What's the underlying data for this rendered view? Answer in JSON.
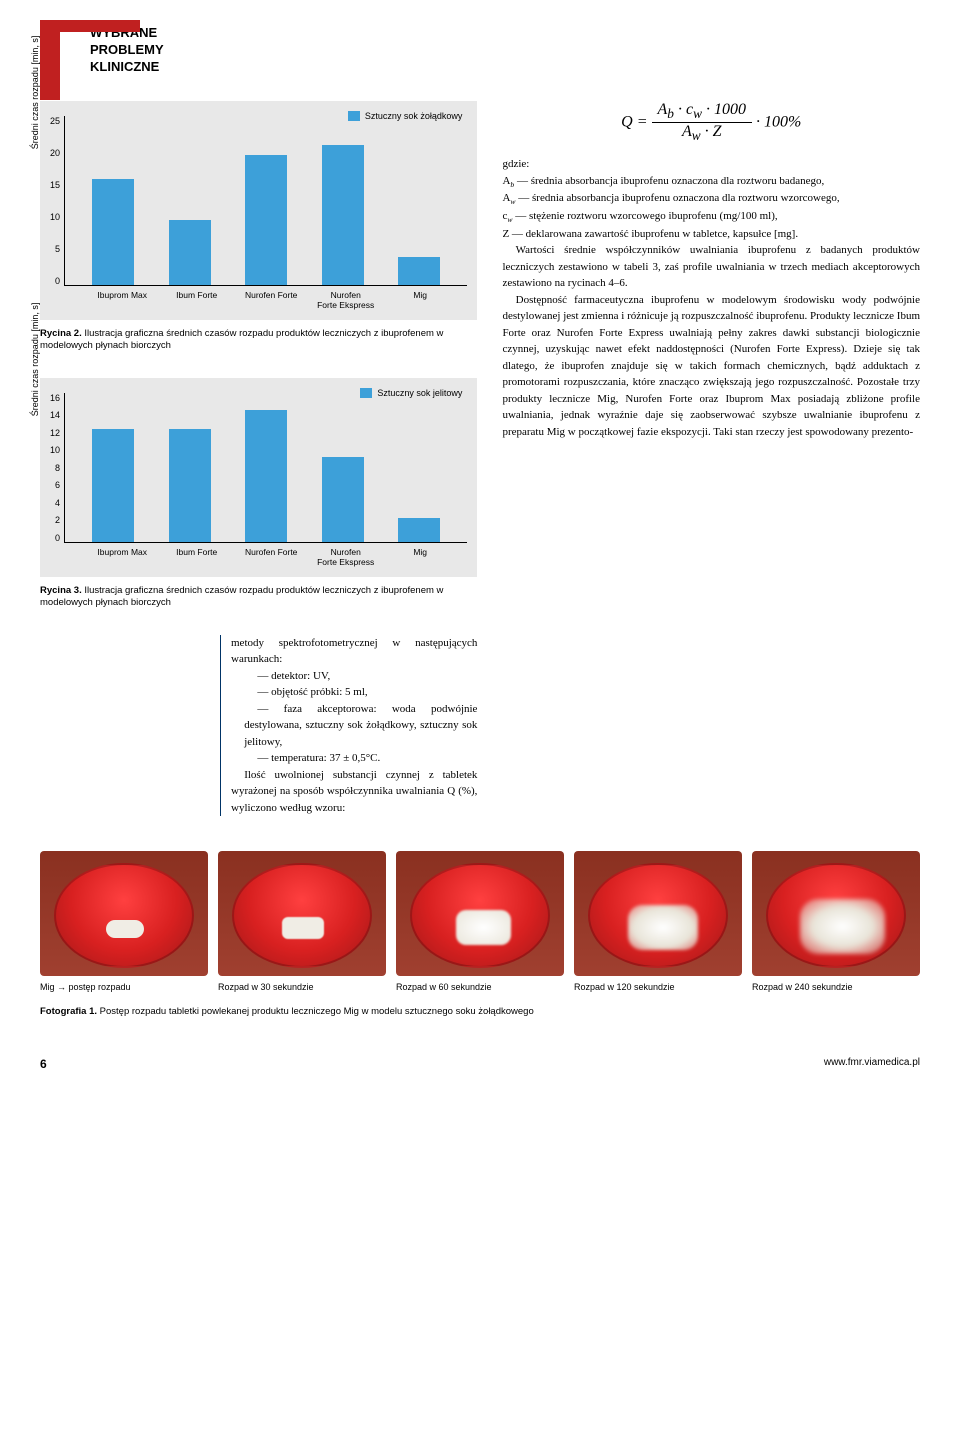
{
  "header": {
    "line1": "WYBRANE",
    "line2": "PROBLEMY",
    "line3": "KLINICZNE"
  },
  "chart2": {
    "type": "bar",
    "legend": "Sztuczny sok żołądkowy",
    "ylabel": "Średni czas rozpadu [min, s]",
    "ylim": [
      0,
      25
    ],
    "ytick_step": 5,
    "categories": [
      "Ibuprom Max",
      "Ibum Forte",
      "Nurofen Forte",
      "Nurofen\nForte Ekspress",
      "Mig"
    ],
    "values": [
      15.5,
      9.5,
      19,
      20.5,
      4
    ],
    "bar_color": "#3da0d9",
    "background_color": "#e8e8e8",
    "caption_label": "Rycina 2.",
    "caption": "Ilustracja graficzna średnich czasów rozpadu produktów leczniczych z ibuprofenem w modelowych płynach biorczych"
  },
  "chart3": {
    "type": "bar",
    "legend": "Sztuczny sok jelitowy",
    "ylabel": "Średni czas rozpadu [min, s]",
    "ylim": [
      0,
      16
    ],
    "ytick_step": 2,
    "categories": [
      "Ibuprom Max",
      "Ibum Forte",
      "Nurofen Forte",
      "Nurofen\nForte Ekspress",
      "Mig"
    ],
    "values": [
      12,
      12,
      14,
      9,
      2.5
    ],
    "bar_color": "#3da0d9",
    "background_color": "#e8e8e8",
    "caption_label": "Rycina 3.",
    "caption": "Ilustracja graficzna średnich czasów rozpadu produktów leczniczych z ibuprofenem w modelowych płynach biorczych"
  },
  "left_body": {
    "intro": "metody spektrofotometrycznej w następujących warunkach:",
    "b1": "— detektor: UV,",
    "b2": "— objętość próbki: 5 ml,",
    "b3": "— faza akceptorowa: woda podwójnie destylowana, sztuczny sok żołądkowy, sztuczny sok jelitowy,",
    "b4": "— temperatura: 37 ± 0,5°C.",
    "p2": "Ilość uwolnionej substancji czynnej z tabletek wyrażonej na sposób współczynnika uwalniania Q (%), wyliczono według wzoru:"
  },
  "formula": {
    "lhs": "Q",
    "num": "A_b · c_w · 1000",
    "den": "A_w · Z",
    "rhs": "· 100%"
  },
  "right_body": {
    "g": "gdzie:",
    "d1": "A_b — średnia absorbancja ibuprofenu oznaczona dla roztworu badanego,",
    "d2": "A_w — średnia absorbancja ibuprofenu oznaczona dla roztworu wzorcowego,",
    "d3": "c_w — stężenie roztworu wzorcowego ibuprofenu (mg/100 ml),",
    "d4": "Z — deklarowana zawartość ibuprofenu w tabletce, kapsułce [mg].",
    "p1": "Wartości średnie współczynników uwalniania ibuprofenu z badanych produktów leczniczych zestawiono w tabeli 3, zaś profile uwalniania w trzech mediach akceptorowych zestawiono na rycinach 4–6.",
    "p2": "Dostępność farmaceutyczna ibuprofenu w modelowym środowisku wody podwójnie destylowanej jest zmienna i różnicuje ją rozpuszczalność ibuprofenu. Produkty lecznicze Ibum Forte oraz Nurofen Forte Express uwalniają pełny zakres dawki substancji biologicznie czynnej, uzyskując nawet efekt naddostępności (Nurofen Forte Express). Dzieje się tak dlatego, że ibuprofen znajduje się w takich formach chemicznych, bądź adduktach z promotorami rozpuszczania, które znacząco zwiększają jego rozpuszczalność. Pozostałe trzy produkty lecznicze Mig, Nurofen Forte oraz Ibuprom Max posiadają zbliżone profile uwalniania, jednak wyraźnie daje się zaobserwować szybsze uwalnianie ibuprofenu z preparatu Mig w początkowej fazie ekspozycji. Taki stan rzeczy jest spowodowany prezento-"
  },
  "photos": {
    "labels": [
      "Mig → postęp rozpadu",
      "Rozpad w 30 sekundzie",
      "Rozpad w 60 sekundzie",
      "Rozpad w 120 sekundzie",
      "Rozpad w 240 sekundzie"
    ],
    "caption_label": "Fotografia 1.",
    "caption": "Postęp rozpadu tabletki powlekanej produktu leczniczego Mig w modelu sztucznego soku żołądkowego"
  },
  "footer": {
    "page": "6",
    "url": "www.fmr.viamedica.pl"
  }
}
